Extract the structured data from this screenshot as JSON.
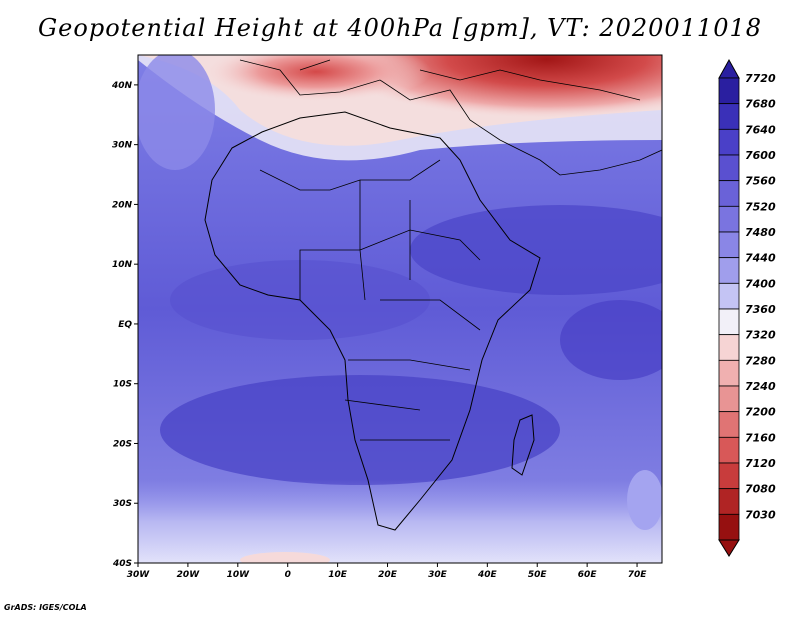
{
  "title": "Geopotential Height at 400hPa [gpm], VT: 2020011018",
  "footer": "GrADS: IGES/COLA",
  "map": {
    "region": "Africa",
    "lon_range": [
      -30,
      75
    ],
    "lat_range": [
      -40,
      45
    ],
    "x_ticks": [
      "30W",
      "20W",
      "10W",
      "0",
      "10E",
      "20E",
      "30E",
      "40E",
      "50E",
      "60E",
      "70E"
    ],
    "y_ticks": [
      "40S",
      "30S",
      "20S",
      "10S",
      "EQ",
      "10N",
      "20N",
      "30N",
      "40N"
    ]
  },
  "colorbar": {
    "levels": [
      "7720",
      "7680",
      "7640",
      "7600",
      "7560",
      "7520",
      "7480",
      "7440",
      "7400",
      "7360",
      "7320",
      "7280",
      "7240",
      "7200",
      "7160",
      "7120",
      "7080",
      "7030"
    ],
    "colors": [
      "#2a1fa0",
      "#3a30b8",
      "#4a40c8",
      "#5a50d0",
      "#6a62d8",
      "#7a74e0",
      "#8a86e6",
      "#a09eec",
      "#c4c4f4",
      "#f2f0f8",
      "#f6d4d4",
      "#f0b0b0",
      "#e89494",
      "#e07474",
      "#d85858",
      "#c83c3c",
      "#b02424",
      "#961010"
    ]
  }
}
